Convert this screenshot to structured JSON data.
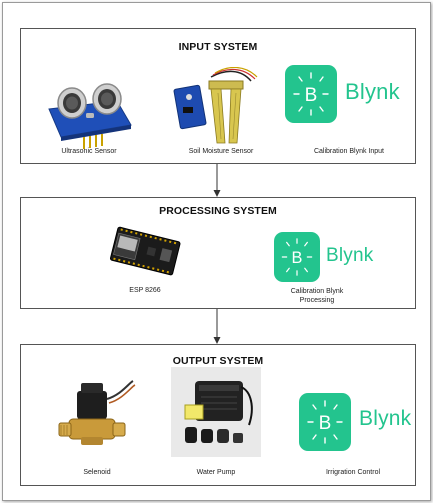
{
  "input_system": {
    "title": "INPUT SYSTEM",
    "items": [
      {
        "label": "Ultrasonic Sensor"
      },
      {
        "label": "Soil Moisture Sensor"
      },
      {
        "label": "Calibration Blynk Input"
      }
    ],
    "blynk_word": "Blynk"
  },
  "processing_system": {
    "title": "PROCESSING SYSTEM",
    "items": [
      {
        "label": "ESP 8266"
      },
      {
        "label_line1": "Calibration Blynk",
        "label_line2": "Processing"
      }
    ],
    "blynk_word": "Blynk"
  },
  "output_system": {
    "title": "OUTPUT SYSTEM",
    "items": [
      {
        "label": "Selenoid"
      },
      {
        "label": "Water Pump"
      },
      {
        "label": "Irrigration Control"
      }
    ],
    "blynk_word": "Blynk"
  },
  "colors": {
    "blynk_green": "#23c48e",
    "border": "#555555",
    "arrow": "#333333"
  }
}
